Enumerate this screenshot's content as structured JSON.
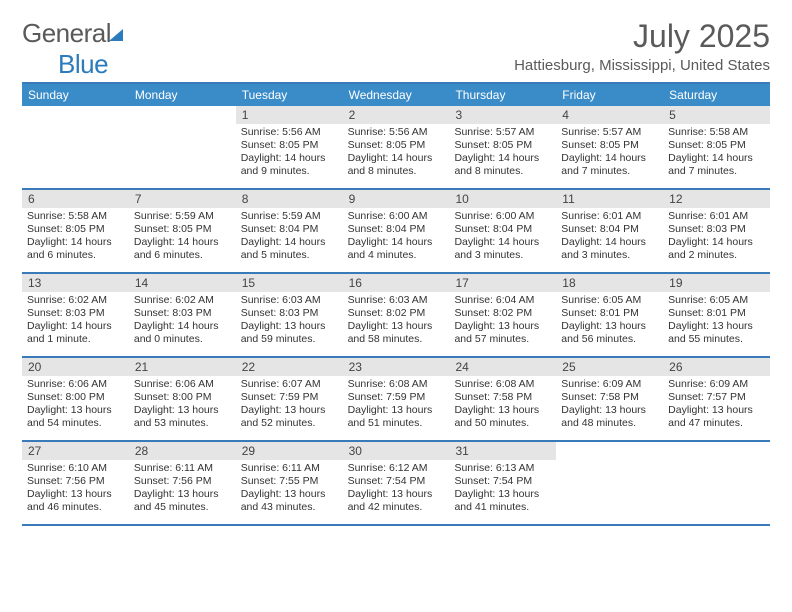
{
  "brand": {
    "part1": "General",
    "part2": "Blue"
  },
  "title": "July 2025",
  "location": "Hattiesburg, Mississippi, United States",
  "colors": {
    "header_bar": "#3a8cc9",
    "border": "#3a7ab8",
    "daynum_bg": "#e5e5e5",
    "text": "#333333",
    "logo_blue": "#2b7bbd",
    "logo_gray": "#5a5a5a"
  },
  "day_names": [
    "Sunday",
    "Monday",
    "Tuesday",
    "Wednesday",
    "Thursday",
    "Friday",
    "Saturday"
  ],
  "weeks": [
    [
      {
        "blank": true
      },
      {
        "blank": true
      },
      {
        "n": "1",
        "sr": "5:56 AM",
        "ss": "8:05 PM",
        "dl": "14 hours and 9 minutes."
      },
      {
        "n": "2",
        "sr": "5:56 AM",
        "ss": "8:05 PM",
        "dl": "14 hours and 8 minutes."
      },
      {
        "n": "3",
        "sr": "5:57 AM",
        "ss": "8:05 PM",
        "dl": "14 hours and 8 minutes."
      },
      {
        "n": "4",
        "sr": "5:57 AM",
        "ss": "8:05 PM",
        "dl": "14 hours and 7 minutes."
      },
      {
        "n": "5",
        "sr": "5:58 AM",
        "ss": "8:05 PM",
        "dl": "14 hours and 7 minutes."
      }
    ],
    [
      {
        "n": "6",
        "sr": "5:58 AM",
        "ss": "8:05 PM",
        "dl": "14 hours and 6 minutes."
      },
      {
        "n": "7",
        "sr": "5:59 AM",
        "ss": "8:05 PM",
        "dl": "14 hours and 6 minutes."
      },
      {
        "n": "8",
        "sr": "5:59 AM",
        "ss": "8:04 PM",
        "dl": "14 hours and 5 minutes."
      },
      {
        "n": "9",
        "sr": "6:00 AM",
        "ss": "8:04 PM",
        "dl": "14 hours and 4 minutes."
      },
      {
        "n": "10",
        "sr": "6:00 AM",
        "ss": "8:04 PM",
        "dl": "14 hours and 3 minutes."
      },
      {
        "n": "11",
        "sr": "6:01 AM",
        "ss": "8:04 PM",
        "dl": "14 hours and 3 minutes."
      },
      {
        "n": "12",
        "sr": "6:01 AM",
        "ss": "8:03 PM",
        "dl": "14 hours and 2 minutes."
      }
    ],
    [
      {
        "n": "13",
        "sr": "6:02 AM",
        "ss": "8:03 PM",
        "dl": "14 hours and 1 minute."
      },
      {
        "n": "14",
        "sr": "6:02 AM",
        "ss": "8:03 PM",
        "dl": "14 hours and 0 minutes."
      },
      {
        "n": "15",
        "sr": "6:03 AM",
        "ss": "8:03 PM",
        "dl": "13 hours and 59 minutes."
      },
      {
        "n": "16",
        "sr": "6:03 AM",
        "ss": "8:02 PM",
        "dl": "13 hours and 58 minutes."
      },
      {
        "n": "17",
        "sr": "6:04 AM",
        "ss": "8:02 PM",
        "dl": "13 hours and 57 minutes."
      },
      {
        "n": "18",
        "sr": "6:05 AM",
        "ss": "8:01 PM",
        "dl": "13 hours and 56 minutes."
      },
      {
        "n": "19",
        "sr": "6:05 AM",
        "ss": "8:01 PM",
        "dl": "13 hours and 55 minutes."
      }
    ],
    [
      {
        "n": "20",
        "sr": "6:06 AM",
        "ss": "8:00 PM",
        "dl": "13 hours and 54 minutes."
      },
      {
        "n": "21",
        "sr": "6:06 AM",
        "ss": "8:00 PM",
        "dl": "13 hours and 53 minutes."
      },
      {
        "n": "22",
        "sr": "6:07 AM",
        "ss": "7:59 PM",
        "dl": "13 hours and 52 minutes."
      },
      {
        "n": "23",
        "sr": "6:08 AM",
        "ss": "7:59 PM",
        "dl": "13 hours and 51 minutes."
      },
      {
        "n": "24",
        "sr": "6:08 AM",
        "ss": "7:58 PM",
        "dl": "13 hours and 50 minutes."
      },
      {
        "n": "25",
        "sr": "6:09 AM",
        "ss": "7:58 PM",
        "dl": "13 hours and 48 minutes."
      },
      {
        "n": "26",
        "sr": "6:09 AM",
        "ss": "7:57 PM",
        "dl": "13 hours and 47 minutes."
      }
    ],
    [
      {
        "n": "27",
        "sr": "6:10 AM",
        "ss": "7:56 PM",
        "dl": "13 hours and 46 minutes."
      },
      {
        "n": "28",
        "sr": "6:11 AM",
        "ss": "7:56 PM",
        "dl": "13 hours and 45 minutes."
      },
      {
        "n": "29",
        "sr": "6:11 AM",
        "ss": "7:55 PM",
        "dl": "13 hours and 43 minutes."
      },
      {
        "n": "30",
        "sr": "6:12 AM",
        "ss": "7:54 PM",
        "dl": "13 hours and 42 minutes."
      },
      {
        "n": "31",
        "sr": "6:13 AM",
        "ss": "7:54 PM",
        "dl": "13 hours and 41 minutes."
      },
      {
        "blank": true
      },
      {
        "blank": true
      }
    ]
  ],
  "labels": {
    "sunrise": "Sunrise:",
    "sunset": "Sunset:",
    "daylight": "Daylight:"
  }
}
